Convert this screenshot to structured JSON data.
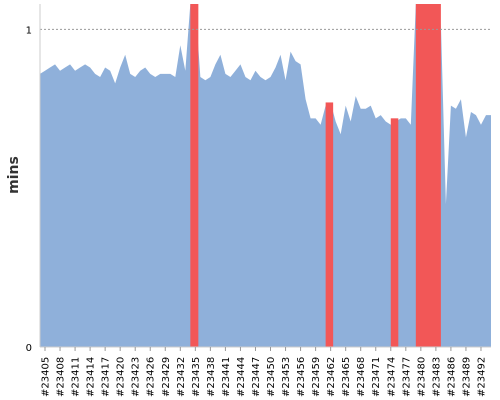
{
  "chart_data": {
    "type": "area",
    "title": "",
    "xlabel": "",
    "ylabel": "mins",
    "ylim": [
      0,
      1.08
    ],
    "yticks": [
      0,
      1
    ],
    "reference_line": {
      "y": 1,
      "style": "dotted"
    },
    "colors": {
      "area": "#8fb0da",
      "highlight": "#f25757",
      "grid": "#999999",
      "axis": "#cccccc"
    },
    "x_tick_labels": [
      "#23405",
      "#23408",
      "#23411",
      "#23414",
      "#23417",
      "#23420",
      "#23423",
      "#23426",
      "#23429",
      "#23432",
      "#23435",
      "#23438",
      "#23441",
      "#23444",
      "#23447",
      "#23450",
      "#23453",
      "#23456",
      "#23459",
      "#23462",
      "#23465",
      "#23468",
      "#23471",
      "#23474",
      "#23477",
      "#23480",
      "#23483",
      "#23486",
      "#23489",
      "#23492"
    ],
    "x_start": 23404,
    "x_end": 23494,
    "series": [
      {
        "kind": "area",
        "x": [
          23404,
          23405,
          23406,
          23407,
          23408,
          23409,
          23410,
          23411,
          23412,
          23413,
          23414,
          23415,
          23416,
          23417,
          23418,
          23419,
          23420,
          23421,
          23422,
          23423,
          23424,
          23425,
          23426,
          23427,
          23428,
          23429,
          23430,
          23431,
          23432,
          23433,
          23434,
          23435,
          23436,
          23437,
          23438,
          23439,
          23440,
          23441,
          23442,
          23443,
          23444,
          23445,
          23446,
          23447,
          23448,
          23449,
          23450,
          23451,
          23452,
          23453,
          23454,
          23455,
          23456,
          23457,
          23458,
          23459,
          23460,
          23461,
          23462,
          23463,
          23464,
          23465,
          23466,
          23467,
          23468,
          23469,
          23470,
          23471,
          23472,
          23473,
          23474,
          23475,
          23476,
          23477,
          23478,
          23479,
          23480,
          23481,
          23482,
          23483,
          23484,
          23485,
          23486,
          23487,
          23488,
          23489,
          23490,
          23491,
          23492,
          23493,
          23494
        ],
        "values": [
          0.86,
          0.87,
          0.88,
          0.89,
          0.87,
          0.88,
          0.89,
          0.87,
          0.88,
          0.89,
          0.88,
          0.86,
          0.85,
          0.88,
          0.87,
          0.83,
          0.88,
          0.92,
          0.86,
          0.85,
          0.87,
          0.88,
          0.86,
          0.85,
          0.86,
          0.86,
          0.86,
          0.85,
          0.95,
          0.87,
          1.08,
          1.08,
          0.85,
          0.84,
          0.85,
          0.89,
          0.92,
          0.86,
          0.85,
          0.87,
          0.89,
          0.85,
          0.84,
          0.87,
          0.85,
          0.84,
          0.85,
          0.88,
          0.92,
          0.84,
          0.93,
          0.9,
          0.89,
          0.78,
          0.72,
          0.72,
          0.7,
          0.76,
          0.77,
          0.71,
          0.67,
          0.76,
          0.71,
          0.79,
          0.75,
          0.75,
          0.76,
          0.72,
          0.73,
          0.71,
          0.7,
          0.71,
          0.72,
          0.72,
          0.7,
          1.08,
          1.08,
          1.08,
          1.08,
          0.62,
          1.02,
          0.45,
          0.76,
          0.75,
          0.78,
          0.66,
          0.74,
          0.73,
          0.7,
          0.73,
          0.73
        ]
      },
      {
        "kind": "highlight",
        "bands": [
          [
            23434,
            23435.6
          ],
          [
            23461,
            23462.5
          ],
          [
            23474,
            23475.5
          ],
          [
            23479,
            23484
          ]
        ],
        "values": [
          1.08,
          0.77,
          0.72,
          1.08
        ]
      }
    ]
  }
}
